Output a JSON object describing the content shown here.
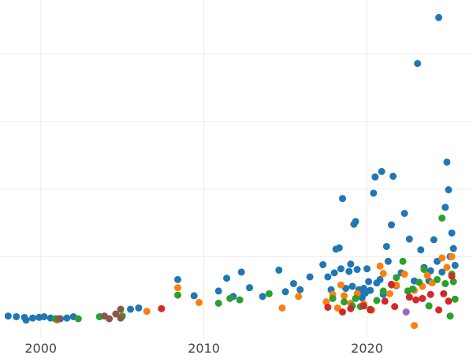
{
  "chart_data": {
    "type": "scatter",
    "title": "",
    "xlabel": "",
    "ylabel": "",
    "xlim": [
      1997.5,
      2026.5
    ],
    "ylim": [
      -2,
      48
    ],
    "grid": true,
    "legend": "none",
    "x_ticks": [
      {
        "value": 2000,
        "label": "2000"
      },
      {
        "value": 2010,
        "label": "2010"
      },
      {
        "value": 2020,
        "label": "2020"
      }
    ],
    "y_gridlines": [
      10,
      20,
      30,
      40
    ],
    "series": [
      {
        "color": "#1f77b4",
        "points": [
          [
            1998.0,
            1.2
          ],
          [
            1998.5,
            1.1
          ],
          [
            1999.0,
            1.0
          ],
          [
            1999.1,
            0.6
          ],
          [
            1999.5,
            0.9
          ],
          [
            1999.9,
            1.0
          ],
          [
            2000.2,
            1.1
          ],
          [
            2000.6,
            0.9
          ],
          [
            2001.0,
            0.7
          ],
          [
            2001.2,
            0.8
          ],
          [
            2001.6,
            0.9
          ],
          [
            2002.0,
            1.1
          ],
          [
            2005.5,
            2.2
          ],
          [
            2006.0,
            2.4
          ],
          [
            2008.4,
            6.6
          ],
          [
            2009.4,
            4.2
          ],
          [
            2010.9,
            4.9
          ],
          [
            2011.4,
            6.8
          ],
          [
            2011.8,
            4.1
          ],
          [
            2012.3,
            7.7
          ],
          [
            2012.8,
            5.4
          ],
          [
            2013.6,
            4.1
          ],
          [
            2014.6,
            8.0
          ],
          [
            2015.0,
            4.8
          ],
          [
            2015.5,
            6.0
          ],
          [
            2015.9,
            5.1
          ],
          [
            2016.5,
            7.0
          ],
          [
            2017.3,
            8.8
          ],
          [
            2017.6,
            7.0
          ],
          [
            2017.8,
            5.1
          ],
          [
            2018.0,
            7.6
          ],
          [
            2018.1,
            11.1
          ],
          [
            2018.3,
            11.3
          ],
          [
            2018.4,
            8.2
          ],
          [
            2018.5,
            18.6
          ],
          [
            2018.7,
            5.3
          ],
          [
            2018.9,
            7.8
          ],
          [
            2019.0,
            8.9
          ],
          [
            2019.1,
            5.6
          ],
          [
            2019.2,
            14.8
          ],
          [
            2019.3,
            15.2
          ],
          [
            2019.4,
            8.1
          ],
          [
            2019.5,
            5.1
          ],
          [
            2019.6,
            4.4
          ],
          [
            2019.7,
            3.9
          ],
          [
            2019.8,
            5.3
          ],
          [
            2019.9,
            4.6
          ],
          [
            2020.0,
            8.2
          ],
          [
            2020.1,
            6.3
          ],
          [
            2020.2,
            5.0
          ],
          [
            2020.4,
            19.4
          ],
          [
            2020.5,
            21.8
          ],
          [
            2020.6,
            6.1
          ],
          [
            2020.8,
            6.6
          ],
          [
            2020.9,
            22.6
          ],
          [
            2021.0,
            4.4
          ],
          [
            2021.2,
            11.5
          ],
          [
            2021.3,
            9.3
          ],
          [
            2021.5,
            14.7
          ],
          [
            2021.6,
            21.9
          ],
          [
            2021.8,
            5.7
          ],
          [
            2022.1,
            7.6
          ],
          [
            2022.3,
            16.4
          ],
          [
            2022.6,
            12.6
          ],
          [
            2022.9,
            6.4
          ],
          [
            2023.1,
            38.6
          ],
          [
            2023.3,
            11.0
          ],
          [
            2023.5,
            8.4
          ],
          [
            2023.8,
            6.4
          ],
          [
            2023.9,
            7.9
          ],
          [
            2024.1,
            12.5
          ],
          [
            2024.3,
            9.3
          ],
          [
            2024.4,
            45.4
          ],
          [
            2024.6,
            7.7
          ],
          [
            2024.8,
            17.3
          ],
          [
            2024.9,
            24.0
          ],
          [
            2025.0,
            19.9
          ],
          [
            2025.1,
            10.0
          ],
          [
            2025.2,
            13.5
          ],
          [
            2025.3,
            11.2
          ],
          [
            2025.4,
            8.7
          ]
        ]
      },
      {
        "color": "#ff7f0e",
        "points": [
          [
            2001.0,
            0.6
          ],
          [
            2006.5,
            1.9
          ],
          [
            2008.4,
            5.4
          ],
          [
            2009.7,
            3.2
          ],
          [
            2014.8,
            2.4
          ],
          [
            2015.8,
            4.1
          ],
          [
            2017.5,
            3.3
          ],
          [
            2017.9,
            4.4
          ],
          [
            2018.2,
            2.4
          ],
          [
            2018.4,
            5.8
          ],
          [
            2018.6,
            4.2
          ],
          [
            2019.0,
            3.1
          ],
          [
            2019.4,
            4.5
          ],
          [
            2019.8,
            3.0
          ],
          [
            2020.3,
            2.1
          ],
          [
            2020.8,
            8.6
          ],
          [
            2021.0,
            7.5
          ],
          [
            2021.4,
            4.5
          ],
          [
            2021.8,
            5.8
          ],
          [
            2022.3,
            7.4
          ],
          [
            2022.6,
            4.0
          ],
          [
            2022.9,
            5.0
          ],
          [
            2023.4,
            5.6
          ],
          [
            2023.7,
            7.2
          ],
          [
            2024.0,
            6.1
          ],
          [
            2024.6,
            9.8
          ],
          [
            2024.9,
            8.4
          ],
          [
            2025.2,
            10.0
          ],
          [
            2022.9,
            -0.2
          ]
        ]
      },
      {
        "color": "#2ca02c",
        "points": [
          [
            2000.9,
            0.8
          ],
          [
            2002.3,
            0.8
          ],
          [
            2003.6,
            1.1
          ],
          [
            2005.0,
            1.2
          ],
          [
            2008.4,
            4.3
          ],
          [
            2010.9,
            3.1
          ],
          [
            2011.6,
            3.8
          ],
          [
            2012.2,
            3.6
          ],
          [
            2014.0,
            4.5
          ],
          [
            2017.9,
            3.8
          ],
          [
            2018.6,
            3.3
          ],
          [
            2019.1,
            2.7
          ],
          [
            2019.3,
            3.8
          ],
          [
            2019.6,
            2.6
          ],
          [
            2020.2,
            2.2
          ],
          [
            2020.6,
            3.5
          ],
          [
            2021.0,
            4.9
          ],
          [
            2021.5,
            5.8
          ],
          [
            2021.8,
            6.9
          ],
          [
            2022.2,
            9.3
          ],
          [
            2022.5,
            4.9
          ],
          [
            2022.8,
            5.2
          ],
          [
            2023.2,
            6.2
          ],
          [
            2023.5,
            8.1
          ],
          [
            2023.8,
            2.7
          ],
          [
            2024.3,
            6.6
          ],
          [
            2024.6,
            15.7
          ],
          [
            2024.8,
            6.0
          ],
          [
            2025.1,
            1.2
          ],
          [
            2025.2,
            7.4
          ],
          [
            2025.3,
            6.3
          ],
          [
            2025.4,
            3.7
          ]
        ]
      },
      {
        "color": "#d62728",
        "points": [
          [
            2007.4,
            2.3
          ],
          [
            2017.6,
            2.5
          ],
          [
            2018.5,
            1.8
          ],
          [
            2019.0,
            2.3
          ],
          [
            2019.8,
            2.7
          ],
          [
            2020.2,
            2.1
          ],
          [
            2021.1,
            3.4
          ],
          [
            2021.5,
            5.9
          ],
          [
            2021.7,
            2.6
          ],
          [
            2022.6,
            4.0
          ],
          [
            2023.0,
            3.6
          ],
          [
            2023.4,
            3.8
          ],
          [
            2023.9,
            4.4
          ],
          [
            2024.4,
            2.1
          ],
          [
            2024.7,
            4.5
          ],
          [
            2025.0,
            3.4
          ],
          [
            2025.2,
            7.1
          ]
        ]
      },
      {
        "color": "#8c564b",
        "points": [
          [
            2001.1,
            0.8
          ],
          [
            2003.9,
            1.2
          ],
          [
            2004.2,
            0.8
          ],
          [
            2004.6,
            1.5
          ],
          [
            2004.9,
            0.9
          ],
          [
            2004.9,
            2.2
          ]
        ]
      },
      {
        "color": "#9467bd",
        "points": [
          [
            2022.4,
            1.8
          ]
        ]
      }
    ]
  }
}
